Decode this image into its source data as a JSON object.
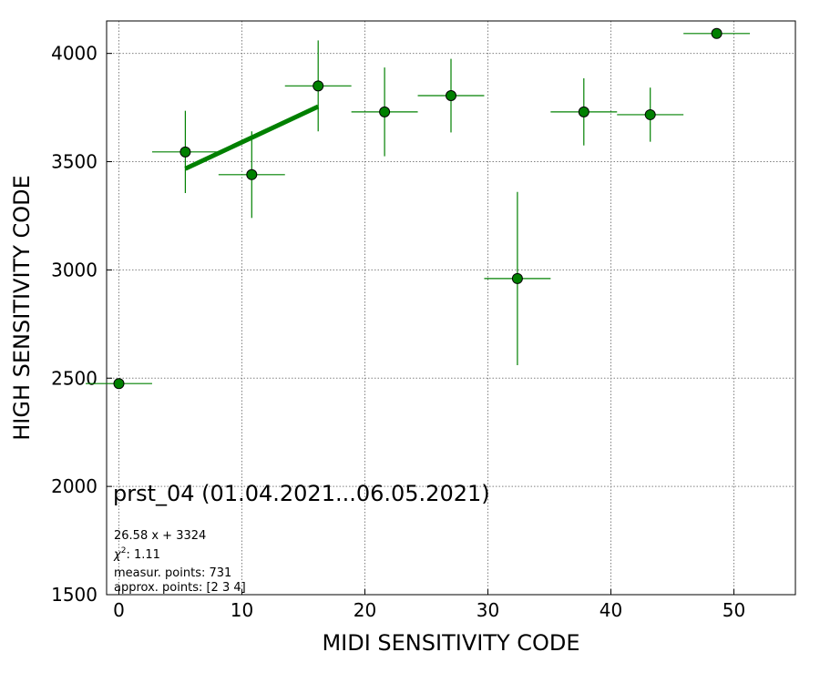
{
  "chart_data": {
    "type": "scatter",
    "title": "",
    "xlabel": "MIDI SENSITIVITY CODE",
    "ylabel": "HIGH SENSITIVITY CODE",
    "xlim": [
      -1,
      55
    ],
    "ylim": [
      1500,
      4150
    ],
    "xticks": [
      0,
      10,
      20,
      30,
      40,
      50
    ],
    "yticks": [
      1500,
      2000,
      2500,
      3000,
      3500,
      4000
    ],
    "grid": true,
    "colors": {
      "series": "#008000",
      "edge": "#000000",
      "grid": "#808080"
    },
    "series": [
      {
        "points": [
          {
            "x": 0.0,
            "y": 2475,
            "xerr": 2.7,
            "yerr": 0
          },
          {
            "x": 5.4,
            "y": 3545,
            "xerr": 2.7,
            "yerr": 190
          },
          {
            "x": 10.8,
            "y": 3440,
            "xerr": 2.7,
            "yerr": 200
          },
          {
            "x": 16.2,
            "y": 3850,
            "xerr": 2.7,
            "yerr": 210
          },
          {
            "x": 21.6,
            "y": 3730,
            "xerr": 2.7,
            "yerr": 205
          },
          {
            "x": 27.0,
            "y": 3805,
            "xerr": 2.7,
            "yerr": 170
          },
          {
            "x": 32.4,
            "y": 2960,
            "xerr": 2.7,
            "yerr": 400
          },
          {
            "x": 37.8,
            "y": 3730,
            "xerr": 2.7,
            "yerr": 155
          },
          {
            "x": 43.2,
            "y": 3717,
            "xerr": 2.7,
            "yerr": 125
          },
          {
            "x": 48.6,
            "y": 4092,
            "xerr": 2.7,
            "yerr": 0
          }
        ]
      }
    ],
    "fit": {
      "slope": 26.58,
      "intercept": 3324,
      "x_range": [
        5.4,
        16.2
      ]
    },
    "annotation": {
      "title": "prst_04 (01.04.2021...06.05.2021)",
      "equation": "26.58 x + 3324",
      "chi_label": "χ",
      "chi_sup": "2",
      "chi_value": ": 1.11",
      "measur_points": "measur. points: 731",
      "approx_points": "approx. points: [2 3 4]"
    }
  }
}
